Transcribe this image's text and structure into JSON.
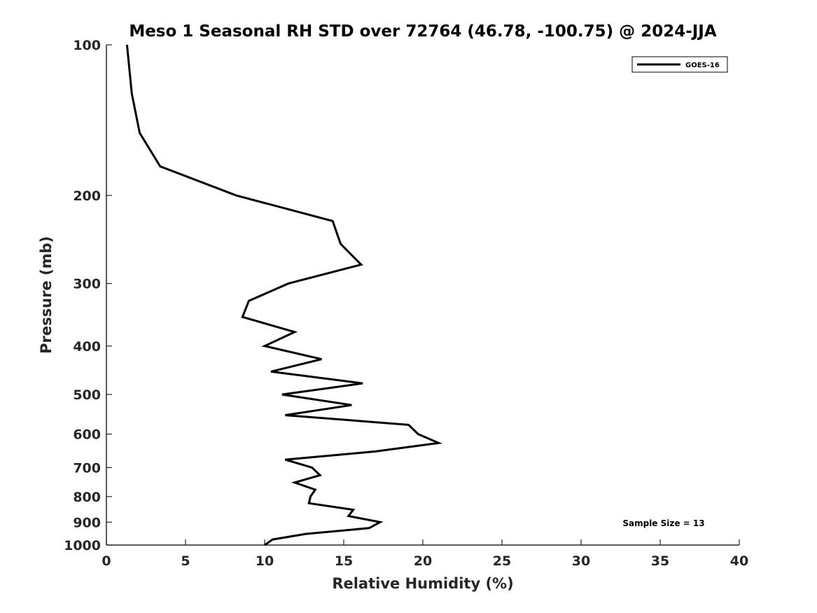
{
  "chart_data": {
    "type": "line",
    "title": "Meso 1 Seasonal RH STD over 72764 (46.78, -100.75) @ 2024-JJA",
    "xlabel": "Relative Humidity (%)",
    "ylabel": "Pressure (mb)",
    "xlim": [
      0,
      40
    ],
    "ylim": [
      100,
      1000
    ],
    "y_scale": "log",
    "y_reversed": true,
    "grid": false,
    "legend_position": "top-right",
    "x_ticks": [
      0,
      5,
      10,
      15,
      20,
      25,
      30,
      35,
      40
    ],
    "y_ticks": [
      100,
      200,
      300,
      400,
      500,
      600,
      700,
      800,
      900,
      1000
    ],
    "series": [
      {
        "name": "GOES-16",
        "color": "#000000",
        "points": [
          [
            1.3,
            100
          ],
          [
            1.6,
            125
          ],
          [
            2.1,
            150
          ],
          [
            3.4,
            175
          ],
          [
            8.2,
            200
          ],
          [
            14.3,
            225
          ],
          [
            14.8,
            250
          ],
          [
            16.1,
            275
          ],
          [
            11.5,
            300
          ],
          [
            9.0,
            325
          ],
          [
            8.6,
            350
          ],
          [
            11.9,
            375
          ],
          [
            10.0,
            400
          ],
          [
            13.6,
            425
          ],
          [
            10.4,
            450
          ],
          [
            16.2,
            475
          ],
          [
            11.1,
            500
          ],
          [
            15.5,
            525
          ],
          [
            11.3,
            550
          ],
          [
            19.1,
            575
          ],
          [
            19.7,
            600
          ],
          [
            21.0,
            625
          ],
          [
            17.0,
            650
          ],
          [
            11.3,
            675
          ],
          [
            13.0,
            700
          ],
          [
            13.5,
            725
          ],
          [
            11.9,
            750
          ],
          [
            13.2,
            775
          ],
          [
            12.9,
            800
          ],
          [
            12.8,
            825
          ],
          [
            15.6,
            850
          ],
          [
            15.3,
            875
          ],
          [
            17.3,
            900
          ],
          [
            16.6,
            925
          ],
          [
            12.6,
            950
          ],
          [
            10.5,
            975
          ],
          [
            10.0,
            1000
          ]
        ]
      }
    ],
    "annotation": "Sample Size = 13"
  }
}
